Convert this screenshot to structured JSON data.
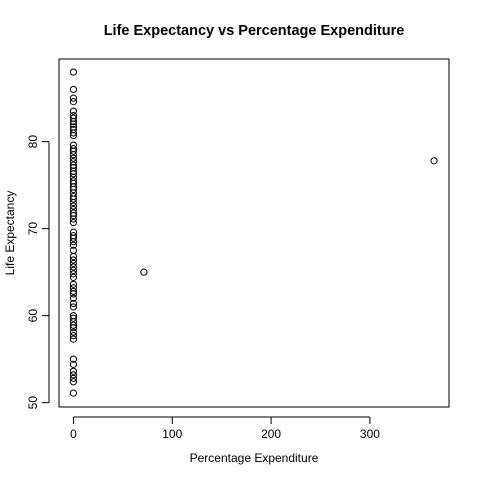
{
  "chart_data": {
    "type": "scatter",
    "title": "Life Expectancy vs  Percentage Expenditure",
    "xlabel": "Percentage Expenditure",
    "ylabel": "Life Expectancy",
    "xlim": [
      -14.6,
      380
    ],
    "ylim": [
      49.5,
      89.5
    ],
    "xticks": [
      0,
      100,
      200,
      300
    ],
    "xtick_labels": [
      "0",
      "100",
      "200",
      "300"
    ],
    "yticks": [
      50,
      60,
      70,
      80
    ],
    "ytick_labels": [
      "50",
      "60",
      "70",
      "80"
    ],
    "grid": false,
    "legend": "none",
    "marker": "open-circle",
    "series": [
      {
        "points": [
          [
            0.0,
            88.0
          ],
          [
            0.0,
            86.0
          ],
          [
            0.0,
            85.0
          ],
          [
            0.0,
            84.6
          ],
          [
            0.0,
            83.5
          ],
          [
            0.0,
            83.0
          ],
          [
            0.0,
            82.7
          ],
          [
            0.0,
            82.3
          ],
          [
            0.0,
            82.0
          ],
          [
            0.0,
            81.7
          ],
          [
            0.0,
            81.4
          ],
          [
            0.0,
            81.0
          ],
          [
            0.0,
            80.7
          ],
          [
            0.0,
            79.6
          ],
          [
            0.0,
            79.2
          ],
          [
            0.0,
            78.9
          ],
          [
            0.0,
            78.5
          ],
          [
            0.0,
            78.1
          ],
          [
            0.0,
            77.7
          ],
          [
            0.0,
            77.3
          ],
          [
            0.0,
            77.0
          ],
          [
            0.0,
            76.6
          ],
          [
            0.0,
            76.3
          ],
          [
            0.0,
            75.9
          ],
          [
            0.0,
            75.5
          ],
          [
            0.0,
            75.2
          ],
          [
            0.0,
            74.8
          ],
          [
            0.0,
            74.5
          ],
          [
            0.0,
            74.1
          ],
          [
            0.0,
            73.7
          ],
          [
            0.0,
            73.4
          ],
          [
            0.0,
            73.0
          ],
          [
            0.0,
            72.6
          ],
          [
            0.0,
            72.2
          ],
          [
            0.0,
            71.8
          ],
          [
            0.0,
            71.5
          ],
          [
            0.0,
            71.1
          ],
          [
            0.0,
            70.7
          ],
          [
            0.0,
            69.6
          ],
          [
            0.0,
            69.2
          ],
          [
            0.0,
            68.9
          ],
          [
            0.0,
            68.5
          ],
          [
            0.0,
            68.1
          ],
          [
            0.0,
            67.5
          ],
          [
            0.0,
            66.8
          ],
          [
            0.0,
            66.4
          ],
          [
            0.0,
            66.0
          ],
          [
            0.0,
            65.6
          ],
          [
            0.0,
            65.2
          ],
          [
            0.0,
            64.8
          ],
          [
            0.0,
            64.4
          ],
          [
            0.0,
            63.6
          ],
          [
            0.0,
            63.2
          ],
          [
            0.0,
            62.8
          ],
          [
            0.0,
            62.5
          ],
          [
            0.0,
            62.0
          ],
          [
            0.0,
            61.4
          ],
          [
            0.0,
            61.0
          ],
          [
            0.0,
            60.0
          ],
          [
            0.0,
            59.7
          ],
          [
            0.0,
            59.3
          ],
          [
            0.0,
            58.9
          ],
          [
            0.0,
            58.6
          ],
          [
            0.0,
            58.1
          ],
          [
            0.0,
            57.7
          ],
          [
            0.0,
            57.3
          ],
          [
            0.0,
            55.0
          ],
          [
            0.0,
            54.4
          ],
          [
            0.0,
            53.6
          ],
          [
            0.0,
            53.2
          ],
          [
            0.0,
            52.8
          ],
          [
            0.0,
            52.4
          ],
          [
            0.0,
            51.1
          ],
          [
            71.3,
            65.0
          ],
          [
            364.9,
            77.8
          ]
        ]
      }
    ]
  }
}
